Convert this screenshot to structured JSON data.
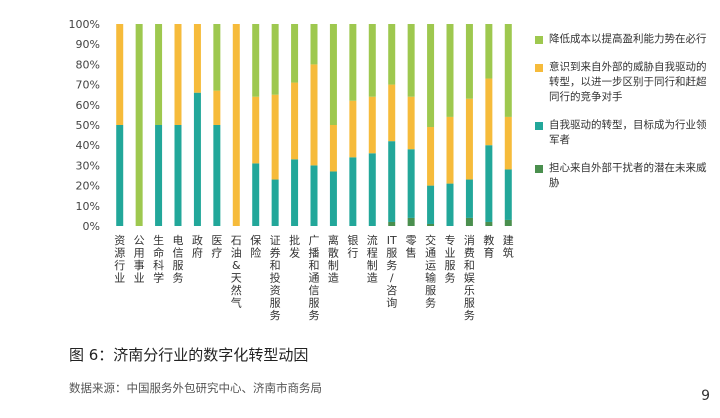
{
  "chart_data": {
    "type": "bar",
    "stacked": true,
    "categories": [
      "资源行业",
      "公用事业",
      "生命科学",
      "电信服务",
      "政府",
      "医疗",
      "石油&天然气",
      "保险",
      "证券和投资服务",
      "批发",
      "广播和通信服务",
      "离散制造",
      "银行",
      "流程制造",
      "IT服务/咨询",
      "零售",
      "交通运输服务",
      "专业服务",
      "消费和娱乐服务",
      "教育",
      "建筑"
    ],
    "ylim": [
      0,
      100
    ],
    "y_ticks": [
      "0%",
      "10%",
      "20%",
      "30%",
      "40%",
      "50%",
      "60%",
      "70%",
      "80%",
      "90%",
      "100%"
    ],
    "grid": false,
    "legend_position": "right",
    "series": [
      {
        "name": "担心来自外部干扰者的潜在未来威胁",
        "color": "#4a8f4e",
        "values": [
          0,
          0,
          0,
          0,
          0,
          0,
          0,
          0,
          0,
          0,
          0,
          0,
          0,
          0,
          2,
          4,
          1,
          0,
          4,
          2,
          3
        ]
      },
      {
        "name": "自我驱动的转型，目标成为行业领军者",
        "color": "#22a79a",
        "values": [
          50,
          0,
          50,
          50,
          66,
          50,
          0,
          31,
          23,
          33,
          30,
          27,
          34,
          36,
          40,
          34,
          19,
          21,
          19,
          38,
          25
        ]
      },
      {
        "name": "意识到来自外部的威胁自我驱动的转型，以进一步区别于同行和赶超同行的竞争对手",
        "color": "#f6bb3b",
        "values": [
          50,
          0,
          0,
          50,
          34,
          17,
          100,
          33,
          42,
          38,
          50,
          23,
          28,
          28,
          28,
          26,
          29,
          33,
          40,
          33,
          26
        ]
      },
      {
        "name": "降低成本以提高盈利能力势在必行",
        "color": "#9ec84f",
        "values": [
          0,
          100,
          50,
          0,
          0,
          33,
          0,
          36,
          35,
          29,
          20,
          50,
          38,
          36,
          30,
          36,
          51,
          46,
          37,
          27,
          46
        ]
      }
    ]
  },
  "legend": [
    {
      "label": "降低成本以提高盈利能力势在必行",
      "color": "#9ec84f"
    },
    {
      "label": "意识到来自外部的威胁自我驱动的转型，以进一步区别于同行和赶超同行的竞争对手",
      "color": "#f6bb3b"
    },
    {
      "label": "自我驱动的转型，目标成为行业领军者",
      "color": "#22a79a"
    },
    {
      "label": "担心来自外部干扰者的潜在未来威胁",
      "color": "#4a8f4e"
    }
  ],
  "caption": "图 6：济南分行业的数字化转型动因",
  "source": "数据来源：中国服务外包研究中心、济南市商务局",
  "page_number": "9"
}
